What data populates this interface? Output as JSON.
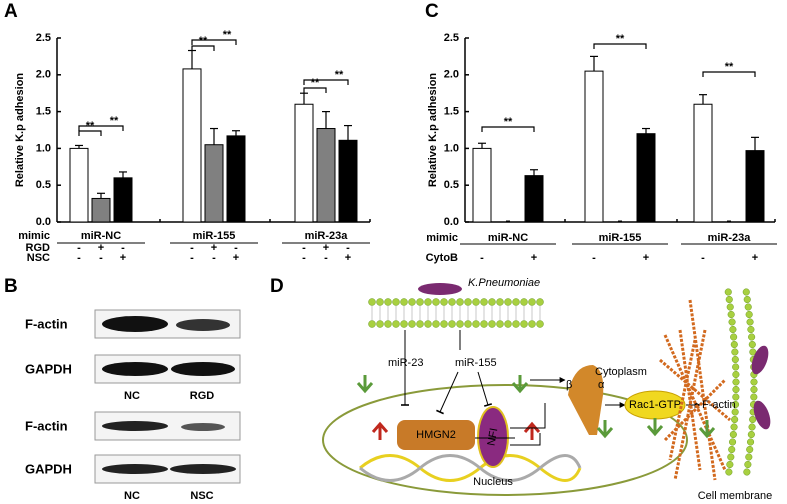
{
  "panel_labels": [
    "A",
    "B",
    "C",
    "D"
  ],
  "chart_data": [
    {
      "type": "bar",
      "ylabel": "Relative K.p adhesion",
      "ylim": [
        0,
        2.5
      ],
      "yticks": [
        {
          "value": 0,
          "label": "0.0"
        },
        0.5,
        {
          "value": 1,
          "label": "1.0"
        },
        1.5,
        {
          "value": 2,
          "label": "2.0"
        },
        2.5
      ],
      "categories": [
        "miR-NC",
        "miR-155",
        "miR-23a"
      ],
      "series": [
        {
          "color": "#ffffff",
          "values": [
            1.0,
            2.08,
            1.6
          ],
          "errors": [
            0.04,
            0.25,
            0.15
          ]
        },
        {
          "color": "#808080",
          "values": [
            0.32,
            1.05,
            1.27
          ],
          "errors": [
            0.07,
            0.22,
            0.23
          ]
        },
        {
          "color": "#000000",
          "values": [
            0.6,
            1.17,
            1.11
          ],
          "errors": [
            0.08,
            0.07,
            0.2
          ]
        }
      ],
      "row_labels": [
        "mimic",
        "RGD",
        "NSC"
      ],
      "signs": [
        [
          "-",
          "+",
          "-",
          "-",
          "+",
          "-",
          "-",
          "+",
          "-"
        ],
        [
          "-",
          "-",
          "+",
          "-",
          "-",
          "+",
          "-",
          "-",
          "+"
        ]
      ],
      "annotations": [
        "**",
        "**",
        "**",
        "**",
        "**",
        "**"
      ]
    },
    {
      "type": "bar",
      "ylabel": "Relative K.p adhesion",
      "ylim": [
        0,
        2.5
      ],
      "yticks": [
        {
          "value": 0,
          "label": "0.0"
        },
        0.5,
        {
          "value": 1,
          "label": "1.0"
        },
        1.5,
        {
          "value": 2,
          "label": "2.0"
        },
        2.5
      ],
      "categories": [
        "miR-NC",
        "miR-155",
        "miR-23a"
      ],
      "series": [
        {
          "color": "#ffffff",
          "values": [
            1.0,
            2.05,
            1.6
          ],
          "errors": [
            0.07,
            0.2,
            0.13
          ]
        },
        {
          "color": "#000000",
          "values": [
            0.63,
            1.2,
            0.97
          ],
          "errors": [
            0.08,
            0.07,
            0.18
          ]
        }
      ],
      "row_labels": [
        "mimic",
        "CytoB"
      ],
      "signs": [
        [
          "-",
          "+",
          "-",
          "+",
          "-",
          "+"
        ]
      ],
      "annotations": [
        "**",
        "**",
        "**"
      ]
    }
  ],
  "blot": {
    "rows": [
      "F-actin",
      "GAPDH",
      "F-actin",
      "GAPDH"
    ],
    "lanes_top": [
      "NC",
      "RGD"
    ],
    "lanes_bottom": [
      "NC",
      "NSC"
    ]
  },
  "diagram": {
    "bacterium": "K.Pneumoniae",
    "mirnas": [
      "miR-23",
      "miR-155"
    ],
    "hmgn2": "HMGN2",
    "nfi": "NFI",
    "nucleus": "Nucleus",
    "beta": "β",
    "alpha": "α",
    "rac": "Rac1-GTP",
    "cytoplasm": "Cytoplasm",
    "factin": "F-actin",
    "membrane": "Cell membrane"
  }
}
